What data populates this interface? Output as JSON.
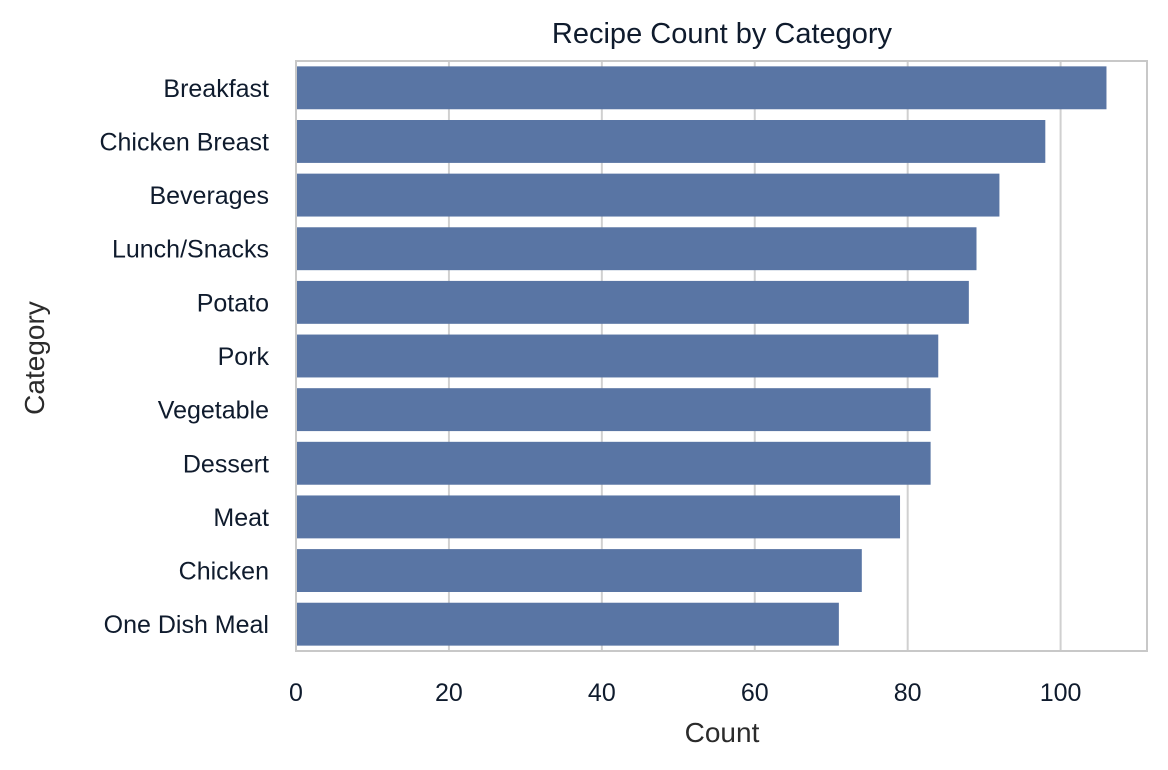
{
  "chart_data": {
    "type": "bar",
    "orientation": "horizontal",
    "title": "Recipe Count by Category",
    "xlabel": "Count",
    "ylabel": "Category",
    "categories": [
      "Breakfast",
      "Chicken Breast",
      "Beverages",
      "Lunch/Snacks",
      "Potato",
      "Pork",
      "Vegetable",
      "Dessert",
      "Meat",
      "Chicken",
      "One Dish Meal"
    ],
    "values": [
      106,
      98,
      92,
      89,
      88,
      84,
      83,
      83,
      79,
      74,
      71
    ],
    "xlim": [
      0,
      111.3
    ],
    "xticks": [
      0,
      20,
      40,
      60,
      80,
      100
    ],
    "xtick_labels": [
      "0",
      "20",
      "40",
      "60",
      "80",
      "100"
    ],
    "grid": true,
    "bar_color": "#5975a4",
    "grid_color": "#d0d0d0",
    "frame_color": "#c8c8c8"
  }
}
